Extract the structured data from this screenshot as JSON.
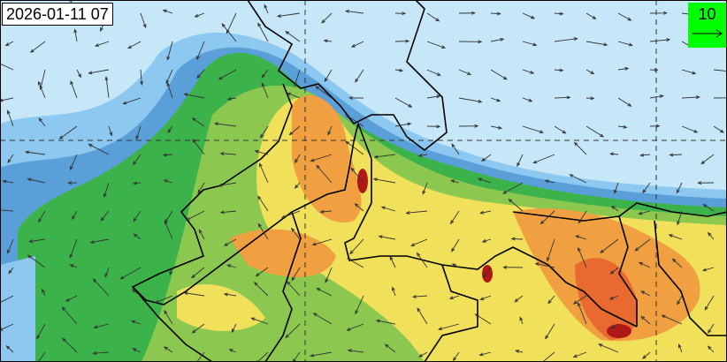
{
  "map": {
    "timestamp": "2026-01-11 07",
    "wind_legend": {
      "value": "10",
      "color": "#00ff00",
      "icon": "arrow-right-icon"
    },
    "colors": {
      "background": "#c6e7f8",
      "light_blue": "#8cc8ef",
      "blue": "#5a9fd8",
      "green": "#3cb34a",
      "light_green": "#8cc850",
      "yellow": "#f0e05a",
      "orange": "#f0a040",
      "red_orange": "#e86a30",
      "dark_red": "#b01818",
      "border": "#000000"
    }
  }
}
